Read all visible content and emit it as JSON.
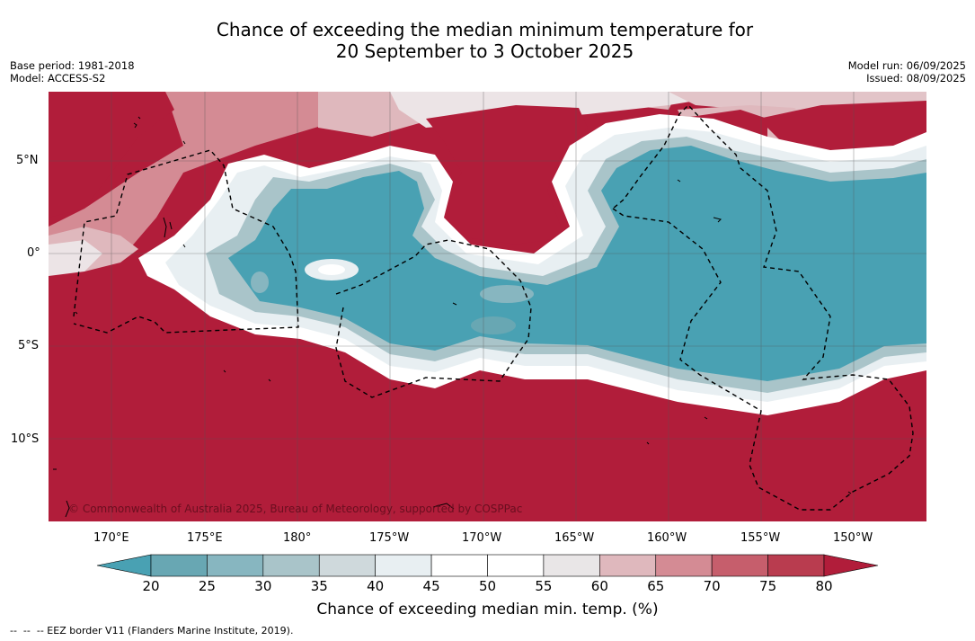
{
  "title": {
    "line1": "Chance of exceeding the median minimum temperature for",
    "line2": "20 September to 3 October 2025"
  },
  "meta_left": {
    "base_period": "Base period: 1981-2018",
    "model": "Model: ACCESS-S2"
  },
  "meta_right": {
    "model_run": "Model run: 06/09/2025",
    "issued": "Issued: 08/09/2025"
  },
  "map": {
    "lat_labels": [
      "5°N",
      "0°",
      "5°S",
      "10°S"
    ],
    "lon_labels": [
      "170°E",
      "175°E",
      "180°",
      "175°W",
      "170°W",
      "165°W",
      "160°W",
      "155°W",
      "150°W"
    ],
    "credit": "© Commonwealth of Australia 2025, Bureau of Meteorology, supported by COSPPac"
  },
  "colorbar": {
    "ticks": [
      "20",
      "25",
      "30",
      "35",
      "40",
      "45",
      "50",
      "55",
      "60",
      "65",
      "70",
      "75",
      "80"
    ],
    "colors": [
      "#68a7b3",
      "#87b6c0",
      "#a9c4c9",
      "#cfd9dc",
      "#e8eff2",
      "#ffffff",
      "#ffffff",
      "#e9e6e7",
      "#dfb8bd",
      "#d48b94",
      "#c65e6c",
      "#b93c4f"
    ],
    "under_color": "#49a1b3",
    "over_color": "#b11d3a",
    "title": "Chance of exceeding median min. temp. (%)"
  },
  "legend": {
    "eez_text": "--  --  -- EEZ border V11 (Flanders Marine Institute, 2019)."
  }
}
